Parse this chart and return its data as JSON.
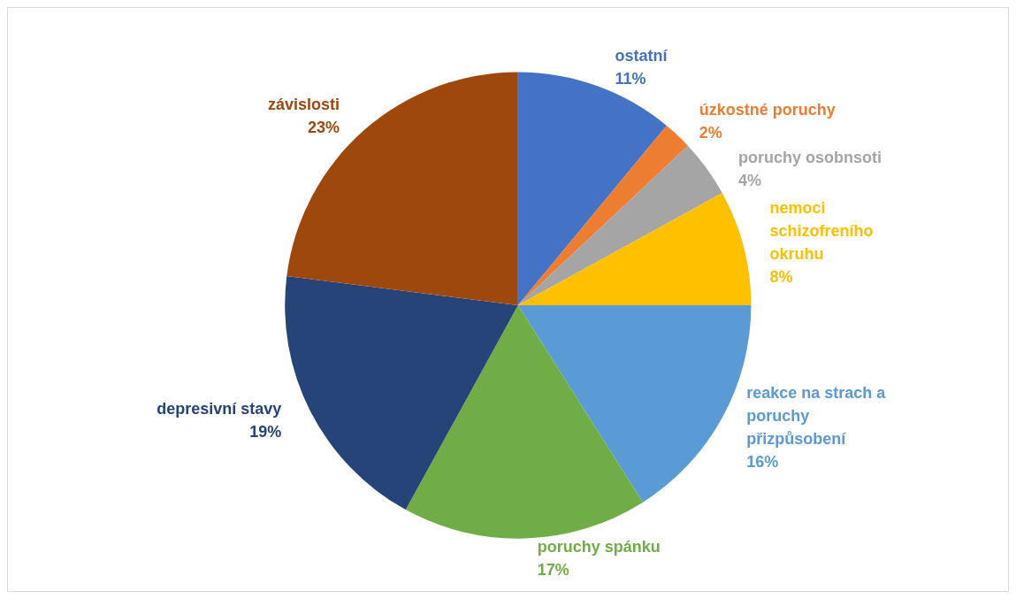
{
  "chart_data": {
    "type": "pie",
    "categories": [
      "ostatní",
      "úzkostné poruchy",
      "poruchy osobnsoti",
      "nemoci schizofreního okruhu",
      "reakce na strach a poruchy přizpůsobení",
      "poruchy spánku",
      "depresivní stavy",
      "závislosti"
    ],
    "values": [
      11,
      2,
      4,
      8,
      16,
      17,
      19,
      23
    ],
    "value_labels": [
      "11%",
      "2%",
      "4%",
      "8%",
      "16%",
      "17%",
      "19%",
      "23%"
    ],
    "colors": [
      "#4472c4",
      "#ed7d31",
      "#a5a5a5",
      "#ffc000",
      "#5b9bd5",
      "#70ad47",
      "#264478",
      "#9e480e"
    ],
    "legend": false
  }
}
